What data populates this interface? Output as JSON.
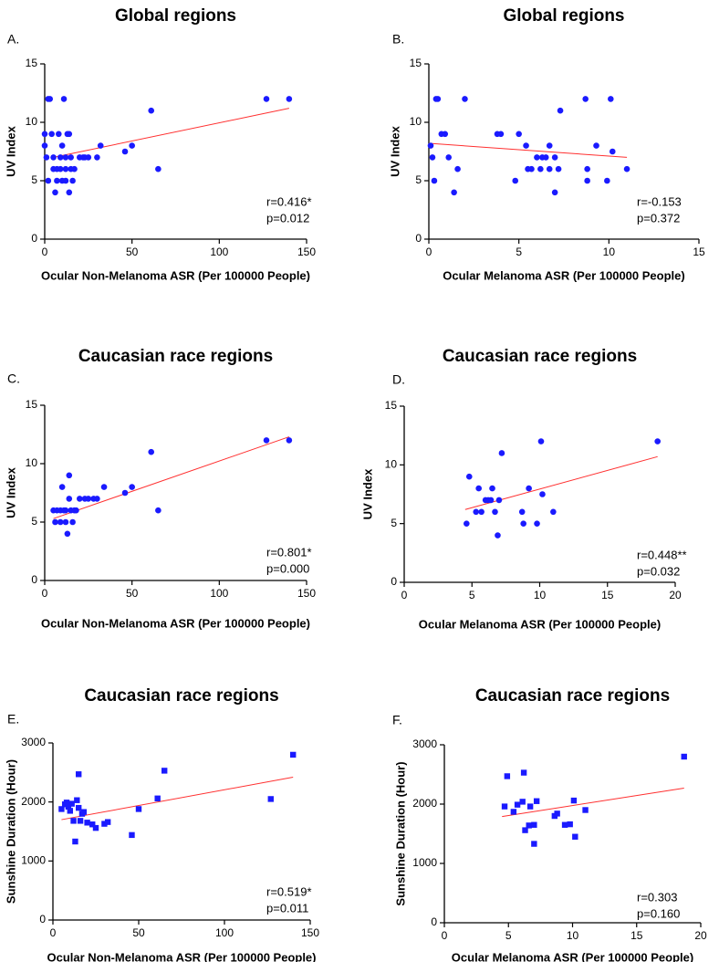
{
  "chart_data": [
    {
      "panel": "A.",
      "type": "scatter",
      "title": "Global regions",
      "xlabel": "Ocular Non-Melanoma ASR (Per 100000  People)",
      "ylabel": "UV Index",
      "xlim": [
        0,
        150
      ],
      "ylim": [
        0,
        15
      ],
      "xticks": [
        0,
        50,
        100,
        150
      ],
      "yticks": [
        0,
        5,
        10,
        15
      ],
      "marker": "circle",
      "annotation": [
        "r=0.416*",
        "p=0.012"
      ],
      "fit": {
        "x": [
          5,
          140
        ],
        "y": [
          7.0,
          11.2
        ]
      },
      "points": [
        [
          0,
          9
        ],
        [
          0,
          8
        ],
        [
          1,
          7
        ],
        [
          2,
          5
        ],
        [
          2,
          12
        ],
        [
          3,
          12
        ],
        [
          4,
          9
        ],
        [
          5,
          7
        ],
        [
          5,
          6
        ],
        [
          6,
          4
        ],
        [
          7,
          5
        ],
        [
          7,
          6
        ],
        [
          8,
          9
        ],
        [
          9,
          7
        ],
        [
          9,
          6
        ],
        [
          10,
          8
        ],
        [
          10,
          5
        ],
        [
          11,
          12
        ],
        [
          12,
          6
        ],
        [
          12,
          7
        ],
        [
          12,
          5
        ],
        [
          13,
          9
        ],
        [
          14,
          9
        ],
        [
          14,
          4
        ],
        [
          15,
          6
        ],
        [
          15,
          7
        ],
        [
          16,
          5
        ],
        [
          17,
          6
        ],
        [
          20,
          7
        ],
        [
          22,
          7
        ],
        [
          23,
          7
        ],
        [
          25,
          7
        ],
        [
          30,
          7
        ],
        [
          32,
          8
        ],
        [
          46,
          7.5
        ],
        [
          50,
          8
        ],
        [
          61,
          11
        ],
        [
          65,
          6
        ],
        [
          127,
          12
        ],
        [
          140,
          12
        ]
      ]
    },
    {
      "panel": "B.",
      "type": "scatter",
      "title": "Global regions",
      "xlabel": "Ocular Melanoma ASR (Per 100000  People)",
      "ylabel": "UV Index",
      "xlim": [
        0,
        15
      ],
      "ylim": [
        0,
        15
      ],
      "xticks": [
        0,
        5,
        10,
        15
      ],
      "yticks": [
        0,
        5,
        10,
        15
      ],
      "marker": "circle",
      "annotation": [
        "r=-0.153",
        "p=0.372"
      ],
      "fit": {
        "x": [
          0,
          11
        ],
        "y": [
          8.2,
          7.0
        ]
      },
      "points": [
        [
          0.1,
          8
        ],
        [
          0.2,
          7
        ],
        [
          0.3,
          5
        ],
        [
          0.4,
          12
        ],
        [
          0.5,
          12
        ],
        [
          0.7,
          9
        ],
        [
          0.9,
          9
        ],
        [
          1.1,
          7
        ],
        [
          1.6,
          6
        ],
        [
          1.4,
          4
        ],
        [
          2.0,
          12
        ],
        [
          3.8,
          9
        ],
        [
          4.0,
          9
        ],
        [
          4.8,
          5
        ],
        [
          5.0,
          9
        ],
        [
          5.4,
          8
        ],
        [
          5.5,
          6
        ],
        [
          5.7,
          6
        ],
        [
          6.0,
          7
        ],
        [
          6.2,
          6
        ],
        [
          6.3,
          7
        ],
        [
          6.5,
          7
        ],
        [
          6.7,
          8
        ],
        [
          6.7,
          6
        ],
        [
          7.0,
          4
        ],
        [
          7.0,
          7
        ],
        [
          7.2,
          6
        ],
        [
          7.3,
          11
        ],
        [
          8.7,
          12
        ],
        [
          8.8,
          6
        ],
        [
          8.8,
          5
        ],
        [
          9.3,
          8
        ],
        [
          9.9,
          5
        ],
        [
          10.1,
          12
        ],
        [
          10.2,
          7.5
        ],
        [
          11.0,
          6
        ]
      ]
    },
    {
      "panel": "C.",
      "type": "scatter",
      "title": "Caucasian race regions",
      "xlabel": "Ocular Non-Melanoma ASR (Per 100000  People)",
      "ylabel": "UV Index",
      "xlim": [
        0,
        150
      ],
      "ylim": [
        0,
        15
      ],
      "xticks": [
        0,
        50,
        100,
        150
      ],
      "yticks": [
        0,
        5,
        10,
        15
      ],
      "marker": "circle",
      "annotation": [
        "r=0.801*",
        "p=0.000"
      ],
      "fit": {
        "x": [
          5,
          140
        ],
        "y": [
          5.3,
          12.3
        ]
      },
      "points": [
        [
          5,
          6
        ],
        [
          6,
          5
        ],
        [
          7,
          6
        ],
        [
          9,
          6
        ],
        [
          9,
          5
        ],
        [
          10,
          8
        ],
        [
          11,
          6
        ],
        [
          12,
          5
        ],
        [
          12,
          6
        ],
        [
          13,
          4
        ],
        [
          14,
          9
        ],
        [
          14,
          7
        ],
        [
          15,
          6
        ],
        [
          16,
          5
        ],
        [
          17,
          6
        ],
        [
          18,
          6
        ],
        [
          20,
          7
        ],
        [
          23,
          7
        ],
        [
          25,
          7
        ],
        [
          28,
          7
        ],
        [
          30,
          7
        ],
        [
          34,
          8
        ],
        [
          46,
          7.5
        ],
        [
          50,
          8
        ],
        [
          61,
          11
        ],
        [
          65,
          6
        ],
        [
          127,
          12
        ],
        [
          140,
          12
        ]
      ]
    },
    {
      "panel": "D.",
      "type": "scatter",
      "title": "Caucasian race regions",
      "xlabel": "Ocular Melanoma ASR (Per 100000  People)",
      "ylabel": "UV Index",
      "xlim": [
        0,
        20
      ],
      "ylim": [
        0,
        15
      ],
      "xticks": [
        0,
        5,
        10,
        15,
        20
      ],
      "yticks": [
        0,
        5,
        10,
        15
      ],
      "marker": "circle",
      "annotation": [
        "r=0.448**",
        "p=0.032"
      ],
      "fit": {
        "x": [
          4.5,
          18.7
        ],
        "y": [
          6.2,
          10.7
        ]
      },
      "points": [
        [
          4.6,
          5
        ],
        [
          4.8,
          9
        ],
        [
          5.3,
          6
        ],
        [
          5.5,
          8
        ],
        [
          5.7,
          6
        ],
        [
          6.0,
          7
        ],
        [
          6.2,
          7
        ],
        [
          6.4,
          7
        ],
        [
          6.5,
          8
        ],
        [
          6.7,
          6
        ],
        [
          6.9,
          4
        ],
        [
          7.0,
          7
        ],
        [
          7.2,
          11
        ],
        [
          8.7,
          6
        ],
        [
          8.8,
          5
        ],
        [
          9.2,
          8
        ],
        [
          9.8,
          5
        ],
        [
          10.1,
          12
        ],
        [
          10.2,
          7.5
        ],
        [
          11.0,
          6
        ],
        [
          18.7,
          12
        ]
      ]
    },
    {
      "panel": "E.",
      "type": "scatter",
      "title": "Caucasian race regions",
      "xlabel": "Ocular Non-Melanoma ASR (Per 100000  People)",
      "ylabel": "Sunshine Duration (Hour)",
      "xlim": [
        0,
        150
      ],
      "ylim": [
        0,
        3000
      ],
      "xticks": [
        0,
        50,
        100,
        150
      ],
      "yticks": [
        0,
        1000,
        2000,
        3000
      ],
      "marker": "square",
      "annotation": [
        "r=0.519*",
        "p=0.011"
      ],
      "fit": {
        "x": [
          5,
          140
        ],
        "y": [
          1700,
          2420
        ]
      },
      "points": [
        [
          5,
          1880
        ],
        [
          7,
          1960
        ],
        [
          8,
          1990
        ],
        [
          9,
          1920
        ],
        [
          10,
          1850
        ],
        [
          11,
          1970
        ],
        [
          12,
          1680
        ],
        [
          13,
          1330
        ],
        [
          14,
          2030
        ],
        [
          15,
          2470
        ],
        [
          15,
          1900
        ],
        [
          16,
          1680
        ],
        [
          17,
          1800
        ],
        [
          18,
          1830
        ],
        [
          20,
          1650
        ],
        [
          23,
          1620
        ],
        [
          25,
          1560
        ],
        [
          30,
          1630
        ],
        [
          32,
          1660
        ],
        [
          46,
          1440
        ],
        [
          50,
          1880
        ],
        [
          61,
          2060
        ],
        [
          65,
          2530
        ],
        [
          127,
          2050
        ],
        [
          140,
          2800
        ]
      ]
    },
    {
      "panel": "F.",
      "type": "scatter",
      "title": "Caucasian race regions",
      "xlabel": "Ocular Melanoma ASR (Per 100000  People)",
      "ylabel": "Sunshine Duration (Hour)",
      "xlim": [
        0,
        20
      ],
      "ylim": [
        0,
        3000
      ],
      "xticks": [
        0,
        5,
        10,
        15,
        20
      ],
      "yticks": [
        0,
        1000,
        2000,
        3000
      ],
      "marker": "square",
      "annotation": [
        "r=0.303",
        "p=0.160"
      ],
      "fit": {
        "x": [
          4.5,
          18.7
        ],
        "y": [
          1790,
          2270
        ]
      },
      "points": [
        [
          4.7,
          1960
        ],
        [
          4.9,
          2470
        ],
        [
          5.4,
          1870
        ],
        [
          5.7,
          1990
        ],
        [
          6.1,
          2040
        ],
        [
          6.2,
          2530
        ],
        [
          6.3,
          1560
        ],
        [
          6.6,
          1640
        ],
        [
          6.7,
          1960
        ],
        [
          7.0,
          1330
        ],
        [
          7.0,
          1650
        ],
        [
          7.2,
          2050
        ],
        [
          8.6,
          1800
        ],
        [
          8.8,
          1840
        ],
        [
          9.4,
          1650
        ],
        [
          9.8,
          1660
        ],
        [
          10.1,
          2060
        ],
        [
          10.2,
          1450
        ],
        [
          11.0,
          1900
        ],
        [
          18.7,
          2800
        ]
      ]
    }
  ]
}
